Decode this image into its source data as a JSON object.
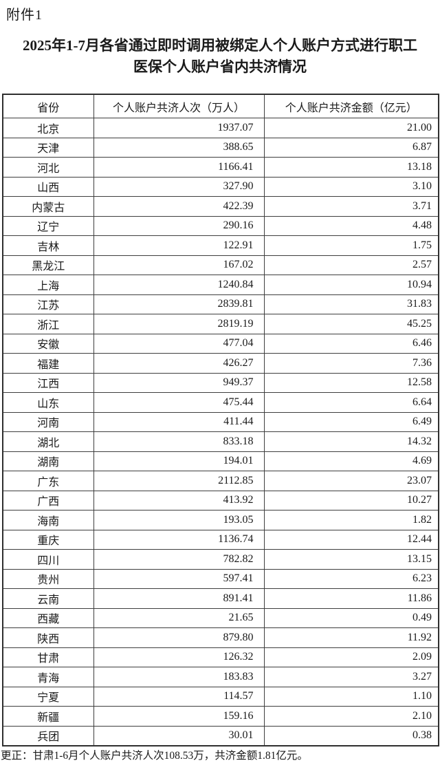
{
  "attachment_label": "附件1",
  "title": {
    "line1": "2025年1-7月各省通过即时调用被绑定人个人账户方式进行职工",
    "line2": "医保个人账户省内共济情况"
  },
  "table": {
    "columns": [
      "省份",
      "个人账户共济人次（万人）",
      "个人账户共济金额（亿元）"
    ],
    "rows": [
      {
        "province": "北京",
        "visits": "1937.07",
        "amount": "21.00"
      },
      {
        "province": "天津",
        "visits": "388.65",
        "amount": "6.87"
      },
      {
        "province": "河北",
        "visits": "1166.41",
        "amount": "13.18"
      },
      {
        "province": "山西",
        "visits": "327.90",
        "amount": "3.10"
      },
      {
        "province": "内蒙古",
        "visits": "422.39",
        "amount": "3.71"
      },
      {
        "province": "辽宁",
        "visits": "290.16",
        "amount": "4.48"
      },
      {
        "province": "吉林",
        "visits": "122.91",
        "amount": "1.75"
      },
      {
        "province": "黑龙江",
        "visits": "167.02",
        "amount": "2.57"
      },
      {
        "province": "上海",
        "visits": "1240.84",
        "amount": "10.94"
      },
      {
        "province": "江苏",
        "visits": "2839.81",
        "amount": "31.83"
      },
      {
        "province": "浙江",
        "visits": "2819.19",
        "amount": "45.25"
      },
      {
        "province": "安徽",
        "visits": "477.04",
        "amount": "6.46"
      },
      {
        "province": "福建",
        "visits": "426.27",
        "amount": "7.36"
      },
      {
        "province": "江西",
        "visits": "949.37",
        "amount": "12.58"
      },
      {
        "province": "山东",
        "visits": "475.44",
        "amount": "6.64"
      },
      {
        "province": "河南",
        "visits": "411.44",
        "amount": "6.49"
      },
      {
        "province": "湖北",
        "visits": "833.18",
        "amount": "14.32"
      },
      {
        "province": "湖南",
        "visits": "194.01",
        "amount": "4.69"
      },
      {
        "province": "广东",
        "visits": "2112.85",
        "amount": "23.07"
      },
      {
        "province": "广西",
        "visits": "413.92",
        "amount": "10.27"
      },
      {
        "province": "海南",
        "visits": "193.05",
        "amount": "1.82"
      },
      {
        "province": "重庆",
        "visits": "1136.74",
        "amount": "12.44"
      },
      {
        "province": "四川",
        "visits": "782.82",
        "amount": "13.15"
      },
      {
        "province": "贵州",
        "visits": "597.41",
        "amount": "6.23"
      },
      {
        "province": "云南",
        "visits": "891.41",
        "amount": "11.86"
      },
      {
        "province": "西藏",
        "visits": "21.65",
        "amount": "0.49"
      },
      {
        "province": "陕西",
        "visits": "879.80",
        "amount": "11.92"
      },
      {
        "province": "甘肃",
        "visits": "126.32",
        "amount": "2.09"
      },
      {
        "province": "青海",
        "visits": "183.83",
        "amount": "3.27"
      },
      {
        "province": "宁夏",
        "visits": "114.57",
        "amount": "1.10"
      },
      {
        "province": "新疆",
        "visits": "159.16",
        "amount": "2.10"
      },
      {
        "province": "兵团",
        "visits": "30.01",
        "amount": "0.38"
      }
    ]
  },
  "footnote": "更正：甘肃1-6月个人账户共济人次108.53万，共济金额1.81亿元。",
  "colors": {
    "text": "#1a1a1a",
    "border": "#3d3d3d",
    "background": "#ffffff"
  }
}
